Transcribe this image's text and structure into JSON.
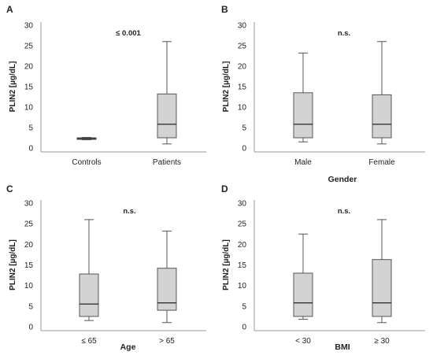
{
  "chart_data": [
    {
      "type": "box",
      "panel_label": "A",
      "annotation": "≤ 0.001",
      "ylabel": "PLIN2 [µg/dL]",
      "xlabel": "",
      "ylim": [
        0,
        30
      ],
      "yticks": [
        "0",
        "5",
        "10",
        "15",
        "20",
        "25",
        "30"
      ],
      "categories": [
        "Controls",
        "Patients"
      ],
      "boxes": [
        {
          "min": 2.0,
          "q1": 2.1,
          "median": 2.3,
          "q3": 2.5,
          "max": 2.6
        },
        {
          "min": 1.0,
          "q1": 2.5,
          "median": 5.8,
          "q3": 13.2,
          "max": 26.0
        }
      ]
    },
    {
      "type": "box",
      "panel_label": "B",
      "annotation": "n.s.",
      "ylabel": "PLIN2 [µg/dL]",
      "xlabel": "Gender",
      "ylim": [
        0,
        30
      ],
      "yticks": [
        "0",
        "5",
        "10",
        "15",
        "20",
        "25",
        "30"
      ],
      "categories": [
        "Male",
        "Female"
      ],
      "boxes": [
        {
          "min": 1.5,
          "q1": 2.5,
          "median": 5.8,
          "q3": 13.5,
          "max": 23.2
        },
        {
          "min": 1.0,
          "q1": 2.5,
          "median": 5.8,
          "q3": 13.0,
          "max": 26.0
        }
      ]
    },
    {
      "type": "box",
      "panel_label": "C",
      "annotation": "n.s.",
      "ylabel": "PLIN2 [µg/dL]",
      "xlabel": "Age",
      "ylim": [
        0,
        30
      ],
      "yticks": [
        "0",
        "5",
        "10",
        "15",
        "20",
        "25",
        "30"
      ],
      "categories": [
        "≤ 65",
        "> 65"
      ],
      "boxes": [
        {
          "min": 1.5,
          "q1": 2.5,
          "median": 5.5,
          "q3": 12.8,
          "max": 26.0
        },
        {
          "min": 1.0,
          "q1": 4.0,
          "median": 5.8,
          "q3": 14.2,
          "max": 23.2
        }
      ]
    },
    {
      "type": "box",
      "panel_label": "D",
      "annotation": "n.s.",
      "ylabel": "PLIN2 [µg/dL]",
      "xlabel": "BMI",
      "ylim": [
        0,
        30
      ],
      "yticks": [
        "0",
        "5",
        "10",
        "15",
        "20",
        "25",
        "30"
      ],
      "categories": [
        "< 30",
        "≥ 30"
      ],
      "boxes": [
        {
          "min": 1.8,
          "q1": 2.5,
          "median": 5.8,
          "q3": 13.0,
          "max": 22.5
        },
        {
          "min": 1.0,
          "q1": 2.5,
          "median": 5.8,
          "q3": 16.3,
          "max": 26.0
        }
      ]
    }
  ],
  "colors": {
    "box_fill": "#d3d3d3",
    "stroke": "#555555",
    "axis": "#9a9a9a",
    "text": "#222222"
  }
}
